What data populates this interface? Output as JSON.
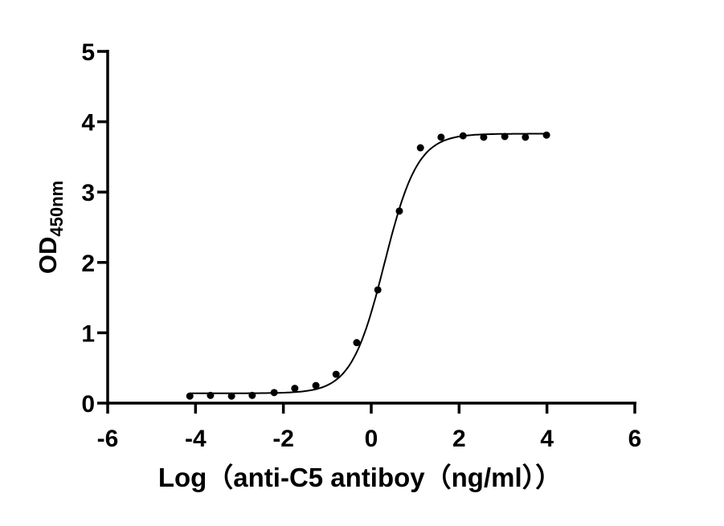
{
  "chart_data": {
    "type": "scatter",
    "title": "",
    "xlabel": "Log（anti-C5 antiboy（ng/ml））",
    "ylabel_main": "OD",
    "ylabel_sub": "450nm",
    "xlim": [
      -6,
      6
    ],
    "ylim": [
      0,
      5
    ],
    "xticks": [
      "-6",
      "-4",
      "-2",
      "0",
      "2",
      "4",
      "6"
    ],
    "yticks": [
      "0",
      "1",
      "2",
      "3",
      "4",
      "5"
    ],
    "grid": false,
    "legend": "none",
    "points": {
      "x": [
        -4.13,
        -3.66,
        -3.18,
        -2.71,
        -2.21,
        -1.74,
        -1.26,
        -0.8,
        -0.33,
        0.15,
        0.64,
        1.12,
        1.59,
        2.09,
        2.56,
        3.04,
        3.51,
        3.99
      ],
      "y": [
        0.1,
        0.11,
        0.1,
        0.11,
        0.15,
        0.21,
        0.25,
        0.41,
        0.86,
        1.61,
        2.73,
        3.63,
        3.78,
        3.8,
        3.78,
        3.79,
        3.78,
        3.81
      ]
    },
    "fit_curve": {
      "model": "four-parameter logistic",
      "bottom": 0.14,
      "top": 3.83,
      "log_ec50": 0.3,
      "hill_slope": 1.15,
      "x_range": [
        -4.13,
        3.99
      ]
    },
    "colors": {
      "points": "#000000",
      "line": "#000000",
      "axes": "#000000"
    }
  }
}
